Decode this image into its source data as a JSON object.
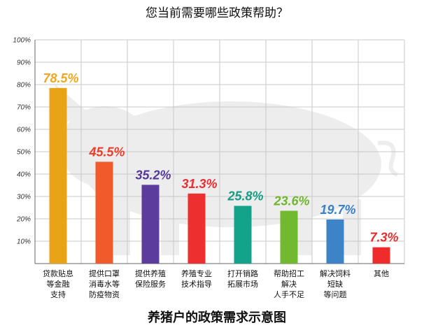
{
  "chart_data": {
    "type": "bar",
    "title": "您当前需要哪些政策帮助？",
    "caption": "养猪户的政策需求示意图",
    "ylim": [
      0,
      100
    ],
    "yticks": [
      "100%",
      "90%",
      "80%",
      "70%",
      "60%",
      "50%",
      "40%",
      "30%",
      "20%",
      "10%"
    ],
    "grid": true,
    "categories": [
      [
        "贷款贴息",
        "等金融",
        "支持"
      ],
      [
        "提供口罩",
        "消毒水等",
        "防疫物资"
      ],
      [
        "提供养殖",
        "保险服务"
      ],
      [
        "养殖专业",
        "技术指导"
      ],
      [
        "打开销路",
        "拓展市场"
      ],
      [
        "帮助招工",
        "解决",
        "人手不足"
      ],
      [
        "解决饲料",
        "短缺",
        "等问题"
      ],
      [
        "其他"
      ]
    ],
    "values": [
      78.5,
      45.5,
      35.2,
      31.3,
      25.8,
      23.6,
      19.7,
      7.3
    ],
    "value_labels": [
      "78.5%",
      "45.5%",
      "35.2%",
      "31.3%",
      "25.8%",
      "23.6%",
      "19.7%",
      "7.3%"
    ],
    "bar_colors": [
      "#e8a317",
      "#f15a2a",
      "#5c3c9c",
      "#ee2f30",
      "#12a38a",
      "#71b92f",
      "#3d84c6",
      "#ef2b2b"
    ],
    "label_colors": [
      "#f0a81c",
      "#ee3c2a",
      "#553996",
      "#ea2e33",
      "#149c85",
      "#6fb52c",
      "#3c82c4",
      "#ea2b2b"
    ]
  }
}
